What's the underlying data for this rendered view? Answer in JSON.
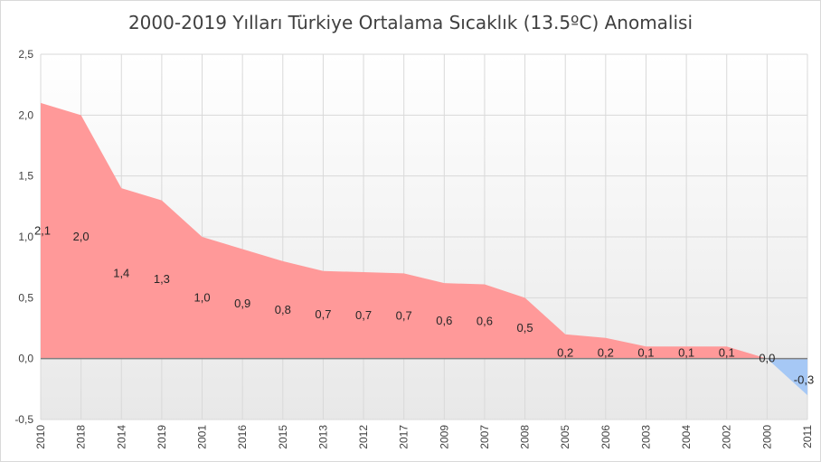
{
  "chart_data": {
    "type": "area",
    "title": "2000-2019 Yılları Türkiye Ortalama Sıcaklık (13.5ºC) Anomalisi",
    "categories": [
      "2010",
      "2018",
      "2014",
      "2019",
      "2001",
      "2016",
      "2015",
      "2013",
      "2012",
      "2017",
      "2009",
      "2007",
      "2008",
      "2005",
      "2006",
      "2003",
      "2004",
      "2002",
      "2000",
      "2011"
    ],
    "values": [
      2.1,
      2.0,
      1.4,
      1.3,
      1.0,
      0.9,
      0.8,
      0.72,
      0.71,
      0.7,
      0.62,
      0.61,
      0.5,
      0.2,
      0.17,
      0.1,
      0.1,
      0.1,
      0.0,
      -0.3
    ],
    "data_labels": [
      "2,1",
      "2,0",
      "1,4",
      "1,3",
      "1,0",
      "0,9",
      "0,8",
      "0,7",
      "0,7",
      "0,7",
      "0,6",
      "0,6",
      "0,5",
      "0,2",
      "0,2",
      "0,1",
      "0,1",
      "0,1",
      "0,0",
      "-0,3"
    ],
    "y_ticks": [
      "-0,5",
      "0,0",
      "0,5",
      "1,0",
      "1,5",
      "2,0",
      "2,5"
    ],
    "ylim": [
      -0.5,
      2.5
    ],
    "grid": true,
    "colors": {
      "positive": "#ff9999",
      "negative": "#a6c8f5",
      "grid": "#d9d9d9"
    }
  }
}
